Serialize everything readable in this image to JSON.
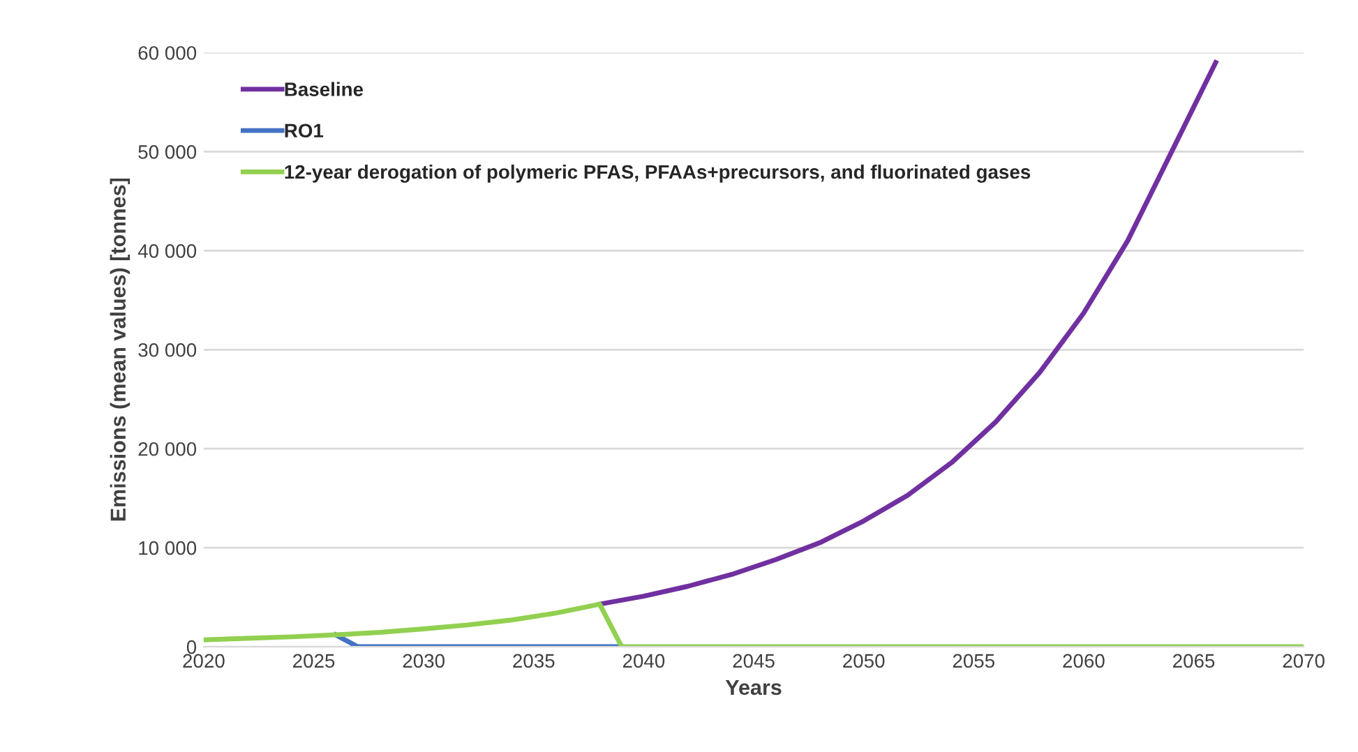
{
  "chart_data": {
    "type": "line",
    "xlabel": "Years",
    "ylabel": "Emissions (mean values) [tonnes]",
    "xlim": [
      2020,
      2070
    ],
    "xticks": [
      2020,
      2025,
      2030,
      2035,
      2040,
      2045,
      2050,
      2055,
      2060,
      2065,
      2070
    ],
    "ylim": [
      0,
      60000
    ],
    "yticks": [
      0,
      {
        "value": 10000,
        "label": "10 000"
      },
      {
        "value": 20000,
        "label": "20 000"
      },
      {
        "value": 30000,
        "label": "30 000"
      },
      {
        "value": 40000,
        "label": "40 000"
      },
      {
        "value": 50000,
        "label": "50 000"
      },
      {
        "value": 60000,
        "label": "60 000"
      }
    ],
    "grid": "y",
    "legend": "top left",
    "marker": "none",
    "line_style": "solid",
    "series": [
      {
        "name": "Baseline",
        "color": "#7030a0",
        "x": [
          2038,
          2040,
          2042,
          2044,
          2046,
          2048,
          2050,
          2052,
          2054,
          2056,
          2058,
          2060,
          2062,
          2064,
          2066
        ],
        "values": [
          4300,
          5100,
          6100,
          7300,
          8800,
          10500,
          12700,
          15300,
          18600,
          22700,
          27700,
          33700,
          41000,
          50000,
          59000
        ]
      },
      {
        "name": "RO1",
        "color": "#4472c4",
        "x": [
          2026,
          2027,
          2039
        ],
        "values": [
          1200,
          0,
          0
        ]
      },
      {
        "name": "12-year derogation of polymeric PFAS, PFAAs+precursors, and fluorinated gases",
        "color": "#92d050",
        "x": [
          2020,
          2022,
          2024,
          2026,
          2028,
          2030,
          2032,
          2034,
          2036,
          2038,
          2039,
          2070
        ],
        "values": [
          700,
          850,
          1000,
          1200,
          1450,
          1800,
          2200,
          2700,
          3400,
          4300,
          0,
          0
        ]
      }
    ]
  }
}
